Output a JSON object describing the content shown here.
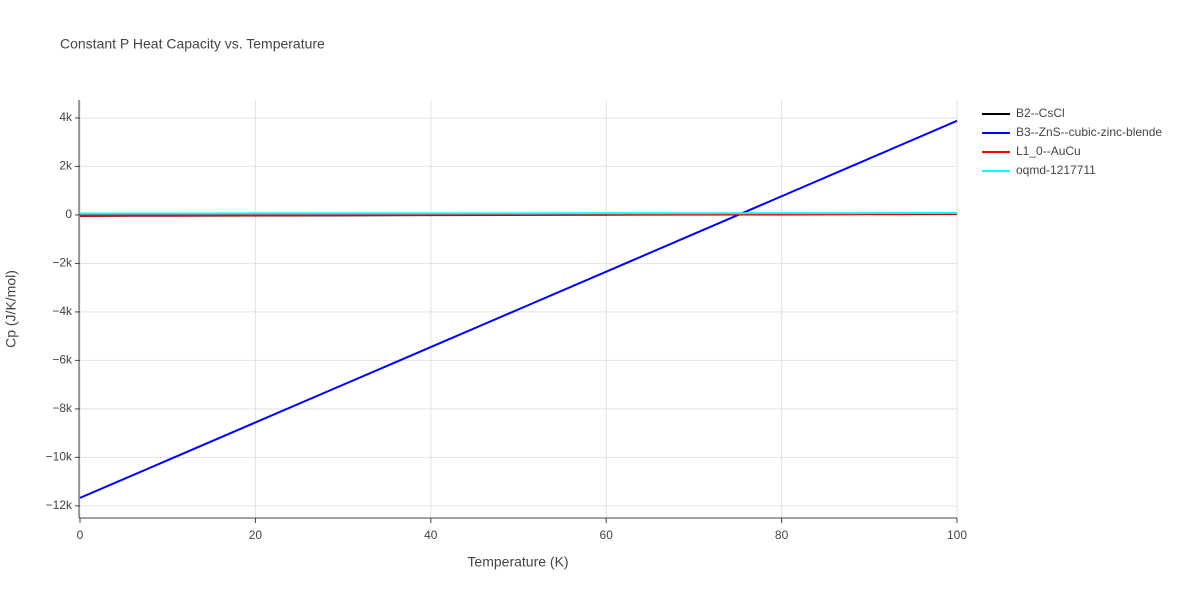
{
  "chart_data": {
    "type": "line",
    "title": "Constant P Heat Capacity vs. Temperature",
    "x_label": "Temperature (K)",
    "y_label": "Cp (J/K/mol)",
    "x": [
      0,
      10,
      20,
      30,
      40,
      50,
      60,
      70,
      80,
      90,
      100
    ],
    "series": [
      {
        "name": "B2--CsCl",
        "color": "#000000",
        "values": [
          -40,
          -32,
          -24,
          -16,
          -8,
          0,
          8,
          16,
          24,
          32,
          40
        ]
      },
      {
        "name": "B3--ZnS--cubic-zinc-blende",
        "color": "#0000ff",
        "values": [
          -11670,
          -10115,
          -8560,
          -7005,
          -5450,
          -3895,
          -2340,
          -785,
          770,
          2325,
          3880
        ]
      },
      {
        "name": "L1_0--AuCu",
        "color": "#ff0000",
        "values": [
          -30,
          -22,
          -14,
          -6,
          2,
          10,
          18,
          26,
          34,
          42,
          50
        ]
      },
      {
        "name": "oqmd-1217711",
        "color": "#00ffff",
        "values": [
          60,
          61,
          62,
          63,
          64,
          66,
          68,
          70,
          73,
          76,
          80
        ]
      }
    ],
    "xlim": [
      0,
      100
    ],
    "xticks": [
      0,
      20,
      40,
      60,
      80,
      100
    ],
    "ylim": [
      -12500,
      4740
    ],
    "yticks": [
      {
        "value": -12000,
        "label": "−12k"
      },
      {
        "value": -10000,
        "label": "−10k"
      },
      {
        "value": -8000,
        "label": "−8k"
      },
      {
        "value": -6000,
        "label": "−6k"
      },
      {
        "value": -4000,
        "label": "−4k"
      },
      {
        "value": -2000,
        "label": "−2k"
      },
      0,
      {
        "value": 2000,
        "label": "2k"
      },
      {
        "value": 4000,
        "label": "4k"
      }
    ],
    "grid": true
  }
}
